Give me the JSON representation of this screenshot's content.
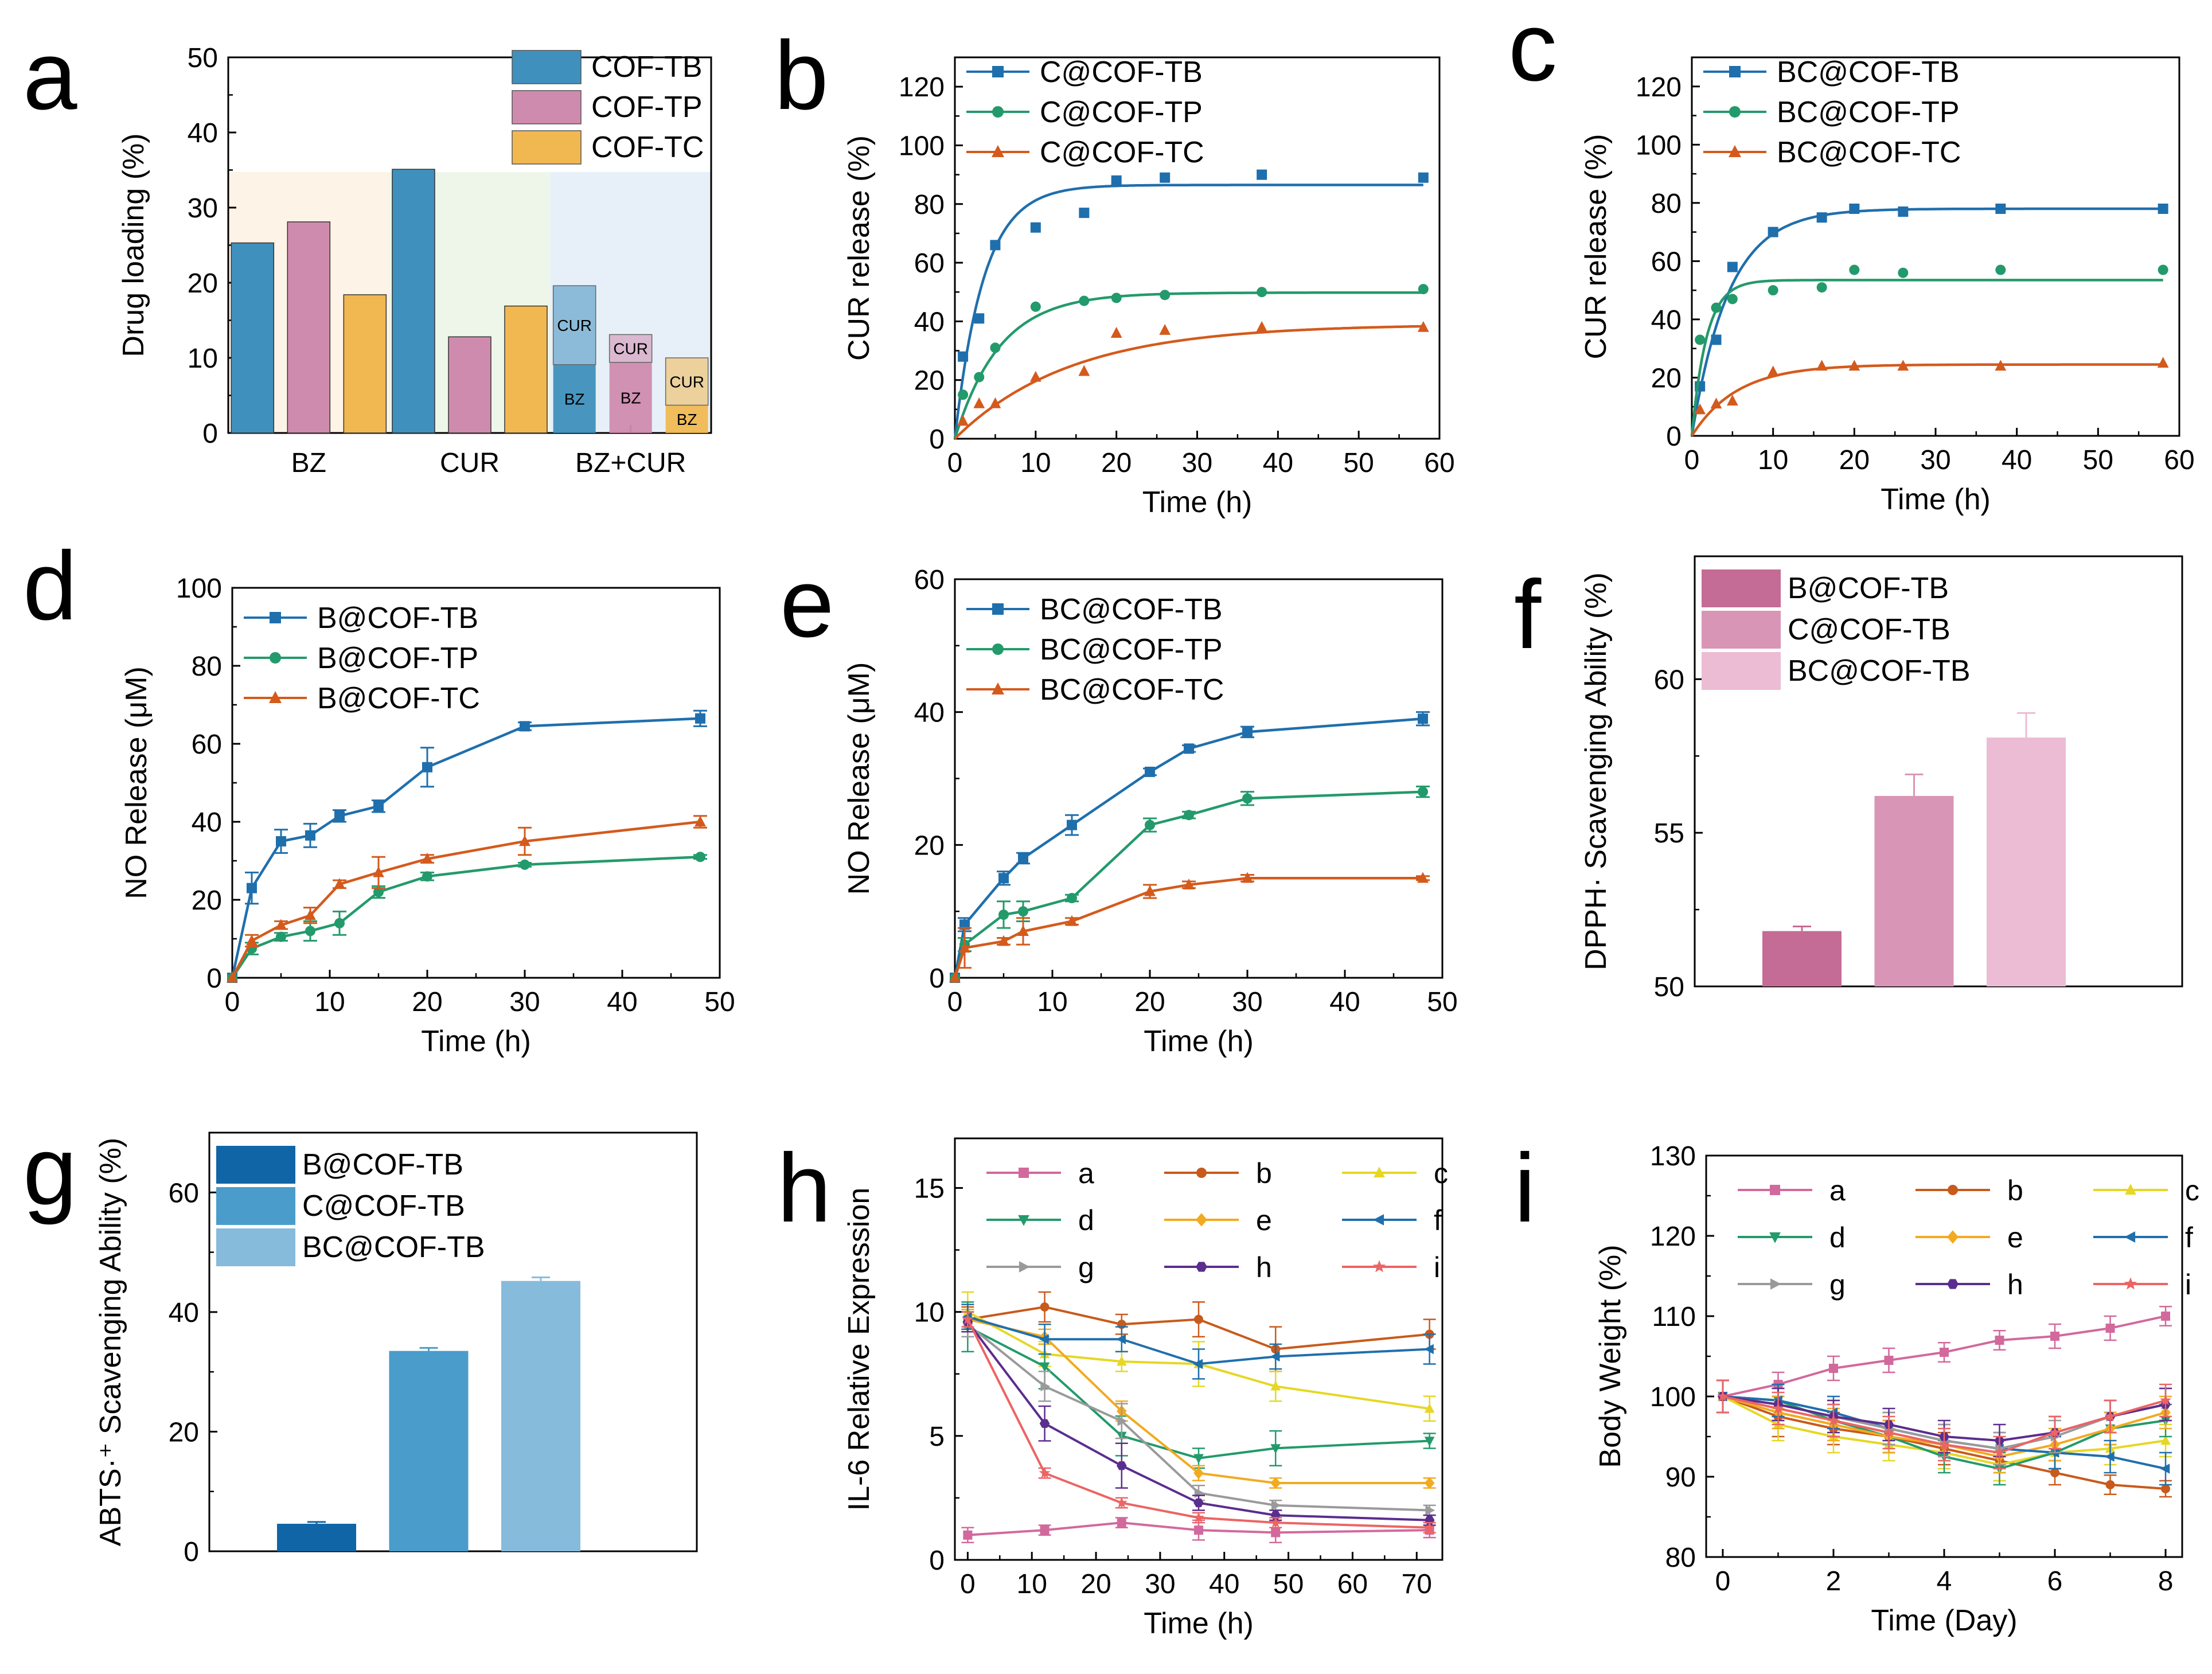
{
  "figure": {
    "panel_count": 9
  },
  "colors": {
    "blue": "#1f6fad",
    "green": "#239a6b",
    "orange": "#d45a1c",
    "pink1": "#c46b96",
    "pink2": "#d995b6",
    "pink3": "#ecbcd4",
    "blue1": "#1065a6",
    "blue2": "#4a9ccb",
    "blue3": "#86bbdc",
    "a_bar1": "#3f90bd",
    "a_bar2": "#cf8bae",
    "a_bar3": "#f1b852"
  },
  "chart_data": [
    {
      "panel": "a",
      "type": "bar",
      "ylabel": "Drug loading (%)",
      "xlabel": "",
      "ylim": [
        0,
        50
      ],
      "yticks": [
        0,
        10,
        20,
        30,
        40,
        50
      ],
      "categories": [
        "BZ",
        "CUR",
        "BZ+CUR"
      ],
      "series": [
        {
          "name": "COF-TB",
          "values": [
            25.3,
            35.1,
            null
          ]
        },
        {
          "name": "COF-TP",
          "values": [
            28.1,
            12.8,
            null
          ]
        },
        {
          "name": "COF-TC",
          "values": [
            18.4,
            16.9,
            null
          ]
        }
      ],
      "stacked": {
        "category": "BZ+CUR",
        "stacks": [
          {
            "name": "COF-TB",
            "BZ": 9.1,
            "CUR": 10.5
          },
          {
            "name": "COF-TP",
            "BZ": 9.4,
            "CUR": 3.7
          },
          {
            "name": "COF-TC",
            "BZ": 3.7,
            "CUR": 6.3
          }
        ],
        "labels": {
          "bz": "BZ",
          "cur": "CUR"
        }
      },
      "legend_position": "top-right"
    },
    {
      "panel": "b",
      "type": "scatter",
      "xlabel": "Time (h)",
      "ylabel": "CUR release (%)",
      "xlim": [
        0,
        60
      ],
      "ylim": [
        0,
        130
      ],
      "xticks": [
        0,
        10,
        20,
        30,
        40,
        50,
        60
      ],
      "yticks": [
        0,
        20,
        40,
        60,
        80,
        100,
        120
      ],
      "x": [
        1,
        3,
        5,
        10,
        16,
        20,
        26,
        38,
        58
      ],
      "series": [
        {
          "name": "C@COF-TB",
          "marker": "square",
          "values": [
            28,
            41,
            66,
            72,
            77,
            88,
            89,
            90,
            89
          ],
          "fit": {
            "a": 86.5,
            "k": 0.28
          }
        },
        {
          "name": "C@COF-TP",
          "marker": "circle",
          "values": [
            15,
            21,
            31,
            45,
            47,
            48,
            49,
            50,
            51
          ],
          "fit": {
            "a": 49.8,
            "k": 0.18
          }
        },
        {
          "name": "C@COF-TC",
          "marker": "triangle",
          "values": [
            6,
            12,
            12,
            21,
            23,
            36,
            37,
            38,
            38
          ],
          "fit": {
            "a": 39,
            "k": 0.07
          }
        }
      ],
      "legend_position": "top-left"
    },
    {
      "panel": "c",
      "type": "scatter",
      "xlabel": "Time (h)",
      "ylabel": "CUR release (%)",
      "xlim": [
        0,
        60
      ],
      "ylim": [
        0,
        130
      ],
      "xticks": [
        0,
        10,
        20,
        30,
        40,
        50,
        60
      ],
      "yticks": [
        0,
        20,
        40,
        60,
        80,
        100,
        120
      ],
      "x": [
        1,
        3,
        5,
        10,
        16,
        20,
        26,
        38,
        58
      ],
      "series": [
        {
          "name": "BC@COF-TB",
          "marker": "square",
          "values": [
            17,
            33,
            58,
            70,
            75,
            78,
            77,
            78,
            78
          ],
          "fit": {
            "a": 78,
            "k": 0.22
          }
        },
        {
          "name": "BC@COF-TP",
          "marker": "circle",
          "values": [
            33,
            44,
            47,
            50,
            51,
            57,
            56,
            57,
            57
          ],
          "fit": {
            "a": 53.5,
            "k": 0.55
          }
        },
        {
          "name": "BC@COF-TC",
          "marker": "triangle",
          "values": [
            9,
            11,
            12,
            22,
            24,
            24,
            24,
            24,
            25
          ],
          "fit": {
            "a": 24.5,
            "k": 0.18
          }
        }
      ],
      "legend_position": "top-left"
    },
    {
      "panel": "d",
      "type": "line",
      "xlabel": "Time (h)",
      "ylabel": "NO Release (μM)",
      "xlim": [
        0,
        50
      ],
      "ylim": [
        0,
        100
      ],
      "xticks": [
        0,
        10,
        20,
        30,
        40,
        50
      ],
      "yticks": [
        0,
        20,
        40,
        60,
        80,
        100
      ],
      "x": [
        0,
        2,
        5,
        8,
        11,
        15,
        20,
        30,
        48
      ],
      "series": [
        {
          "name": "B@COF-TB",
          "marker": "square",
          "values": [
            0,
            23,
            35,
            36.5,
            41.5,
            44,
            54,
            64.5,
            66.5
          ],
          "err": [
            0,
            4,
            3,
            3,
            1.5,
            1.5,
            5,
            1,
            2
          ]
        },
        {
          "name": "B@COF-TP",
          "marker": "circle",
          "values": [
            0,
            7.5,
            10.5,
            12,
            14,
            22,
            26,
            29,
            31
          ],
          "err": [
            0,
            1.5,
            1,
            2.5,
            3,
            1.5,
            1,
            0.5,
            0.5
          ]
        },
        {
          "name": "B@COF-TC",
          "marker": "triangle",
          "values": [
            0,
            9.5,
            13.5,
            16,
            24,
            27,
            30.5,
            35,
            40
          ],
          "err": [
            0,
            1.5,
            1,
            2,
            1,
            4,
            1,
            3.5,
            1.5
          ]
        }
      ],
      "legend_position": "top-left"
    },
    {
      "panel": "e",
      "type": "line",
      "xlabel": "Time (h)",
      "ylabel": "NO Release (μM)",
      "xlim": [
        0,
        50
      ],
      "ylim": [
        0,
        60
      ],
      "xticks": [
        0,
        10,
        20,
        30,
        40,
        50
      ],
      "yticks": [
        0,
        20,
        40,
        60
      ],
      "x": [
        0,
        1,
        5,
        7,
        12,
        20,
        24,
        30,
        48
      ],
      "series": [
        {
          "name": "BC@COF-TB",
          "marker": "square",
          "values": [
            0,
            8,
            15,
            18,
            23,
            31,
            34.5,
            37,
            39
          ],
          "err": [
            0,
            1,
            1,
            0.8,
            1.5,
            0.5,
            0.5,
            0.8,
            1
          ]
        },
        {
          "name": "BC@COF-TP",
          "marker": "circle",
          "values": [
            0,
            5,
            9.5,
            10,
            12,
            23,
            24.5,
            27,
            28
          ],
          "err": [
            0,
            1,
            2,
            1.5,
            0.5,
            1,
            0.5,
            1,
            0.8
          ]
        },
        {
          "name": "BC@COF-TC",
          "marker": "triangle",
          "values": [
            0,
            4.5,
            5.5,
            7,
            8.5,
            13,
            14,
            15,
            15
          ],
          "err": [
            0,
            3,
            0.5,
            2,
            0.5,
            1,
            0.5,
            0.5,
            0.3
          ]
        }
      ],
      "legend_position": "top-left"
    },
    {
      "panel": "f",
      "type": "bar",
      "xlabel": "",
      "ylabel": "DPPH· Scavenging Ability (%)",
      "ylim": [
        50,
        64
      ],
      "yticks": [
        50,
        55,
        60
      ],
      "categories": [
        "B@COF-TB",
        "C@COF-TB",
        "BC@COF-TB"
      ],
      "values": [
        51.8,
        56.2,
        58.1
      ],
      "err": [
        0.15,
        0.7,
        0.8
      ],
      "legend_position": "top-left"
    },
    {
      "panel": "g",
      "type": "bar",
      "xlabel": "",
      "ylabel": "ABTS·⁺ Scavenging Ability (%)",
      "ylim": [
        0,
        70
      ],
      "yticks": [
        0,
        20,
        40,
        60
      ],
      "categories": [
        "B@COF-TB",
        "C@COF-TB",
        "BC@COF-TB"
      ],
      "values": [
        4.6,
        33.5,
        45.2
      ],
      "err": [
        0.3,
        0.5,
        0.6
      ],
      "legend_position": "top-left"
    },
    {
      "panel": "h",
      "type": "line",
      "xlabel": "Time (h)",
      "ylabel": "IL-6 Relative Expression",
      "xlim": [
        -2,
        74
      ],
      "ylim": [
        0,
        17
      ],
      "xticks": [
        0,
        10,
        20,
        30,
        40,
        50,
        60,
        70
      ],
      "yticks": [
        0,
        5,
        10,
        15
      ],
      "x": [
        0,
        12,
        24,
        36,
        48,
        72
      ],
      "series": [
        {
          "name": "a",
          "color": "#d2699c",
          "marker": "square",
          "values": [
            1.0,
            1.2,
            1.5,
            1.2,
            1.1,
            1.2
          ],
          "err": [
            0.3,
            0.2,
            0.2,
            0.4,
            0.4,
            0.3
          ]
        },
        {
          "name": "b",
          "color": "#c85a1c",
          "marker": "circle",
          "values": [
            9.7,
            10.2,
            9.5,
            9.7,
            8.5,
            9.1
          ],
          "err": [
            0.5,
            0.6,
            0.4,
            0.7,
            0.9,
            0.6
          ]
        },
        {
          "name": "c",
          "color": "#e6d724",
          "marker": "triangle",
          "values": [
            10.0,
            8.3,
            8.0,
            7.9,
            7.0,
            6.1
          ],
          "err": [
            0.8,
            0.5,
            0.4,
            0.9,
            0.6,
            0.5
          ]
        },
        {
          "name": "d",
          "color": "#239a6b",
          "marker": "tri-down",
          "values": [
            9.4,
            7.8,
            5.0,
            4.1,
            4.5,
            4.8
          ],
          "err": [
            1.0,
            0.9,
            0.8,
            0.4,
            0.7,
            0.3
          ]
        },
        {
          "name": "e",
          "color": "#f2aa1f",
          "marker": "diamond",
          "values": [
            9.7,
            9.0,
            6.0,
            3.5,
            3.1,
            3.1
          ],
          "err": [
            0.4,
            0.3,
            0.4,
            0.3,
            0.2,
            0.2
          ]
        },
        {
          "name": "f",
          "color": "#1f6fad",
          "marker": "tri-left",
          "values": [
            9.8,
            8.9,
            8.9,
            7.9,
            8.2,
            8.5
          ],
          "err": [
            0.5,
            0.6,
            0.5,
            0.6,
            0.5,
            0.6
          ]
        },
        {
          "name": "g",
          "color": "#9a9a9a",
          "marker": "tri-right",
          "values": [
            9.5,
            7.0,
            5.6,
            2.7,
            2.2,
            2.0
          ],
          "err": [
            0.5,
            0.6,
            0.7,
            0.3,
            0.2,
            0.2
          ]
        },
        {
          "name": "h",
          "color": "#5b2d8e",
          "marker": "hexagon",
          "values": [
            9.6,
            5.5,
            3.8,
            2.3,
            1.8,
            1.6
          ],
          "err": [
            0.4,
            0.7,
            0.9,
            0.3,
            0.2,
            0.2
          ]
        },
        {
          "name": "i",
          "color": "#ec6464",
          "marker": "star",
          "values": [
            9.7,
            3.5,
            2.3,
            1.7,
            1.5,
            1.3
          ],
          "err": [
            0.3,
            0.2,
            0.2,
            0.2,
            0.2,
            0.2
          ]
        }
      ],
      "legend_position": "top"
    },
    {
      "panel": "i",
      "type": "line",
      "xlabel": "Time (Day)",
      "ylabel": "Body Weight (%)",
      "xlim": [
        -0.3,
        8.3
      ],
      "ylim": [
        80,
        130
      ],
      "xticks": [
        0,
        2,
        4,
        6,
        8
      ],
      "yticks": [
        80,
        90,
        100,
        110,
        120,
        130
      ],
      "x": [
        0,
        1,
        2,
        3,
        4,
        5,
        6,
        7,
        8
      ],
      "series": [
        {
          "name": "a",
          "color": "#d2699c",
          "marker": "square",
          "values": [
            100,
            101.5,
            103.5,
            104.5,
            105.5,
            107,
            107.5,
            108.5,
            110
          ],
          "err": [
            2,
            1.5,
            1.5,
            1.5,
            1.2,
            1.2,
            1.5,
            1.5,
            1.2
          ]
        },
        {
          "name": "b",
          "color": "#c85a1c",
          "marker": "circle",
          "values": [
            100,
            97.5,
            96,
            95,
            93.5,
            92,
            90.5,
            89,
            88.5
          ],
          "err": [
            2,
            2.5,
            2,
            2,
            2,
            1.5,
            1.5,
            1.2,
            1
          ]
        },
        {
          "name": "c",
          "color": "#e6d724",
          "marker": "triangle",
          "values": [
            100,
            96.5,
            95,
            94,
            93,
            91.5,
            93,
            93.5,
            94.5
          ],
          "err": [
            2,
            2,
            2,
            2,
            2,
            2,
            2,
            2,
            2
          ]
        },
        {
          "name": "d",
          "color": "#239a6b",
          "marker": "tri-down",
          "values": [
            100,
            99.5,
            97,
            95,
            92.5,
            91,
            93,
            96,
            97
          ],
          "err": [
            2,
            2,
            2,
            2,
            2,
            2,
            2,
            2,
            2
          ]
        },
        {
          "name": "e",
          "color": "#f2aa1f",
          "marker": "diamond",
          "values": [
            100,
            98,
            96.5,
            95,
            94,
            92.5,
            94,
            96,
            98
          ],
          "err": [
            2,
            2,
            2,
            2,
            2,
            2,
            2,
            2,
            2
          ]
        },
        {
          "name": "f",
          "color": "#1f6fad",
          "marker": "tri-left",
          "values": [
            100,
            99.5,
            98,
            96,
            94.5,
            93.5,
            93,
            92.5,
            91
          ],
          "err": [
            2,
            2,
            2,
            2,
            2,
            2,
            2,
            2,
            2
          ]
        },
        {
          "name": "g",
          "color": "#9a9a9a",
          "marker": "tri-right",
          "values": [
            100,
            99,
            97.5,
            96,
            94.5,
            93.5,
            95,
            97.5,
            99
          ],
          "err": [
            2,
            2,
            2,
            2,
            2,
            2,
            2,
            2,
            2
          ]
        },
        {
          "name": "h",
          "color": "#5b2d8e",
          "marker": "hexagon",
          "values": [
            100,
            99,
            97.5,
            96.5,
            95,
            94.5,
            95.5,
            97.5,
            99
          ],
          "err": [
            2,
            2,
            2,
            2,
            2,
            2,
            2,
            2,
            2
          ]
        },
        {
          "name": "i",
          "color": "#ec6464",
          "marker": "star",
          "values": [
            100,
            98.5,
            97,
            95.5,
            94,
            93,
            95.5,
            97.5,
            99.5
          ],
          "err": [
            2,
            2,
            2,
            2,
            2,
            2,
            2,
            2,
            2
          ]
        }
      ],
      "legend_position": "top"
    }
  ]
}
